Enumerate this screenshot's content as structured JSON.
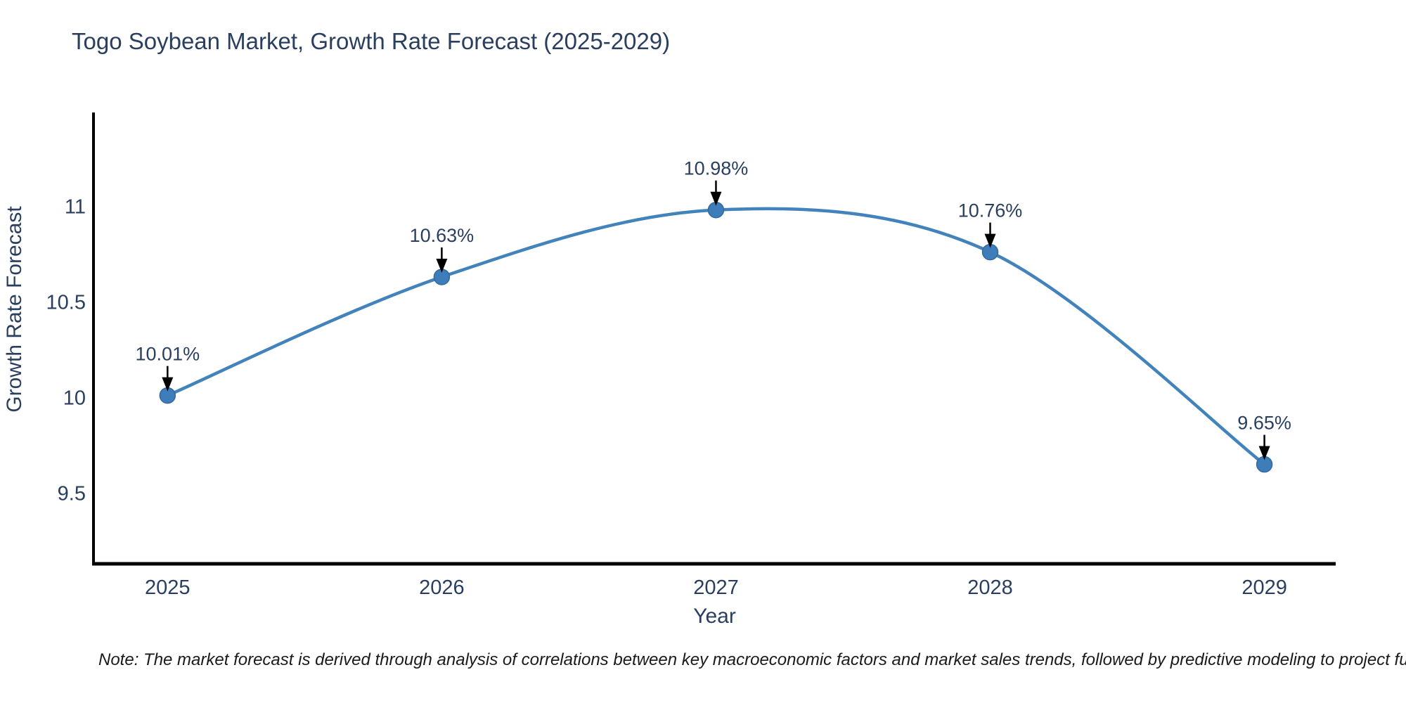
{
  "chart": {
    "title": "Togo Soybean Market, Growth Rate Forecast (2025-2029)",
    "note": "Note: The market forecast is derived through analysis of correlations between key macroeconomic factors and market sales trends, followed by predictive modeling to project future sal"
  },
  "chart_data": {
    "type": "line",
    "title": "Togo Soybean Market, Growth Rate Forecast (2025-2029)",
    "xlabel": "Year",
    "ylabel": "Growth Rate Forecast",
    "x": [
      2025,
      2026,
      2027,
      2028,
      2029
    ],
    "y": [
      10.01,
      10.63,
      10.98,
      10.76,
      9.65
    ],
    "point_labels": [
      "10.01%",
      "10.63%",
      "10.98%",
      "10.76%",
      "9.65%"
    ],
    "xtick_labels": [
      "2025",
      "2026",
      "2027",
      "2028",
      "2029"
    ],
    "yticks": [
      9.5,
      10,
      10.5,
      11
    ],
    "ytick_labels": [
      "9.5",
      "10",
      "10.5",
      "11"
    ],
    "xlim": [
      2024.73,
      2029.26
    ],
    "ylim": [
      9.13,
      11.49
    ],
    "grid": false,
    "legend": false,
    "line_shape": "spline",
    "colors": {
      "line": "#4383bb",
      "marker_fill": "#3d7dba",
      "marker_edge": "#35699c",
      "axis_line": "#000000",
      "text": "#2a3f5f",
      "annotation_text": "#2a3f5f",
      "annotation_arrow": "#000000",
      "background": "#ffffff"
    }
  }
}
